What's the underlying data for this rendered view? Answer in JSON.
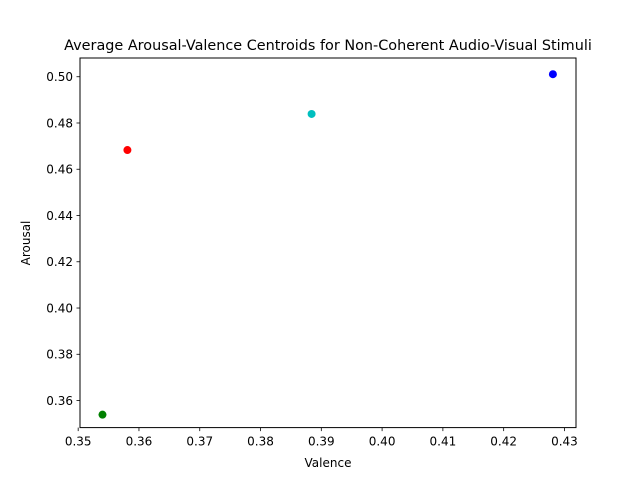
{
  "chart_data": {
    "type": "scatter",
    "title": "Average Arousal-Valence Centroids for Non-Coherent Audio-Visual Stimuli",
    "xlabel": "Valence",
    "ylabel": "Arousal",
    "xlim": [
      0.3503,
      0.4319
    ],
    "ylim": [
      0.3483,
      0.5081
    ],
    "xticks": [
      0.35,
      0.36,
      0.37,
      0.38,
      0.39,
      0.4,
      0.41,
      0.42,
      0.43
    ],
    "xtick_labels": [
      "0.35",
      "0.36",
      "0.37",
      "0.38",
      "0.39",
      "0.40",
      "0.41",
      "0.42",
      "0.43"
    ],
    "yticks": [
      0.36,
      0.38,
      0.4,
      0.42,
      0.44,
      0.46,
      0.48,
      0.5
    ],
    "ytick_labels": [
      "0.36",
      "0.38",
      "0.40",
      "0.42",
      "0.44",
      "0.46",
      "0.48",
      "0.50"
    ],
    "grid": false,
    "points": [
      {
        "x": 0.3581,
        "y": 0.4683,
        "color": "#ff0000"
      },
      {
        "x": 0.354,
        "y": 0.3539,
        "color": "#008000"
      },
      {
        "x": 0.4281,
        "y": 0.5011,
        "color": "#0000ff"
      },
      {
        "x": 0.3884,
        "y": 0.4839,
        "color": "#00bfbf"
      }
    ]
  }
}
